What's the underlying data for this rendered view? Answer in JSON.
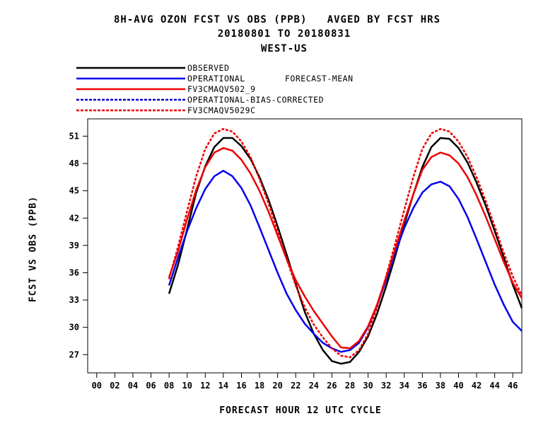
{
  "chart_data": {
    "type": "line",
    "title": [
      "8H-AVG OZON FCST VS OBS (PPB)   AVGED BY FCST HRS",
      "20180801 TO 20180831",
      "WEST-US"
    ],
    "xlabel": "FORECAST HOUR  12 UTC CYCLE",
    "ylabel": "FCST VS OBS (PPB)",
    "xlim": [
      -1,
      47
    ],
    "ylim": [
      25,
      52.9
    ],
    "xticks": [
      0,
      2,
      4,
      6,
      8,
      10,
      12,
      14,
      16,
      18,
      20,
      22,
      24,
      26,
      28,
      30,
      32,
      34,
      36,
      38,
      40,
      42,
      44,
      46
    ],
    "xtick_labels": [
      "00",
      "02",
      "04",
      "06",
      "08",
      "10",
      "12",
      "14",
      "16",
      "18",
      "20",
      "22",
      "24",
      "26",
      "28",
      "30",
      "32",
      "34",
      "36",
      "38",
      "40",
      "42",
      "44",
      "46"
    ],
    "yticks": [
      27,
      30,
      33,
      36,
      39,
      42,
      45,
      48,
      51
    ],
    "grid": false,
    "legend_position": "top-left",
    "legend_note": "FORECAST-MEAN",
    "series": [
      {
        "name": "OBSERVED",
        "color": "#000000",
        "dash": "solid",
        "x": [
          8,
          9,
          10,
          11,
          12,
          13,
          14,
          15,
          16,
          17,
          18,
          19,
          20,
          21,
          22,
          23,
          24,
          25,
          26,
          27,
          28,
          29,
          30,
          31,
          32,
          33,
          34,
          35,
          36,
          37,
          38,
          39,
          40,
          41,
          42,
          43,
          44,
          45,
          46,
          47
        ],
        "y": [
          33.7,
          36.9,
          40.8,
          44.8,
          47.7,
          49.8,
          50.8,
          50.8,
          49.9,
          48.5,
          46.5,
          44.0,
          41.1,
          38.0,
          34.8,
          31.7,
          29.3,
          27.5,
          26.3,
          26.0,
          26.2,
          27.3,
          29.0,
          31.5,
          34.5,
          37.8,
          41.3,
          44.6,
          47.6,
          49.8,
          50.8,
          50.7,
          49.7,
          48.1,
          45.9,
          43.4,
          40.6,
          37.7,
          34.7,
          32.1
        ]
      },
      {
        "name": "OPERATIONAL",
        "color": "#0000ee",
        "dash": "solid",
        "x": [
          8,
          9,
          10,
          11,
          12,
          13,
          14,
          15,
          16,
          17,
          18,
          19,
          20,
          21,
          22,
          23,
          24,
          25,
          26,
          27,
          28,
          29,
          30,
          31,
          32,
          33,
          34,
          35,
          36,
          37,
          38,
          39,
          40,
          41,
          42,
          43,
          44,
          45,
          46,
          47
        ],
        "y": [
          34.6,
          37.7,
          40.6,
          43.1,
          45.2,
          46.6,
          47.2,
          46.6,
          45.3,
          43.4,
          41.0,
          38.5,
          36.0,
          33.7,
          31.9,
          30.4,
          29.3,
          28.3,
          27.7,
          27.3,
          27.5,
          28.3,
          30.0,
          32.4,
          35.2,
          38.2,
          40.9,
          43.1,
          44.8,
          45.7,
          46.0,
          45.5,
          44.1,
          42.1,
          39.7,
          37.2,
          34.7,
          32.5,
          30.6,
          29.6
        ]
      },
      {
        "name": "FV3CMAQV502_9",
        "color": "#ee0000",
        "dash": "solid",
        "x": [
          8,
          9,
          10,
          11,
          12,
          13,
          14,
          15,
          16,
          17,
          18,
          19,
          20,
          21,
          22,
          23,
          24,
          25,
          26,
          27,
          28,
          29,
          30,
          31,
          32,
          33,
          34,
          35,
          36,
          37,
          38,
          39,
          40,
          41,
          42,
          43,
          44,
          45,
          46,
          47
        ],
        "y": [
          35.5,
          38.4,
          41.9,
          45.1,
          47.6,
          49.2,
          49.7,
          49.4,
          48.4,
          46.9,
          45.0,
          42.7,
          40.1,
          37.5,
          35.2,
          33.4,
          31.8,
          30.4,
          29.0,
          27.8,
          27.7,
          28.5,
          30.1,
          32.5,
          35.5,
          38.6,
          41.7,
          44.6,
          47.3,
          48.7,
          49.2,
          48.9,
          48.0,
          46.5,
          44.5,
          42.2,
          39.7,
          37.2,
          34.9,
          33.2
        ]
      },
      {
        "name": "OPERATIONAL-BIAS-CORRECTED",
        "color": "#0000cc",
        "dash": "4,2",
        "x": [],
        "y": []
      },
      {
        "name": "FV3CMAQV5029C",
        "color": "#ee0000",
        "dash": "4,2",
        "x": [
          8,
          9,
          10,
          11,
          12,
          13,
          14,
          15,
          16,
          17,
          18,
          19,
          20,
          21,
          22,
          23,
          24,
          25,
          26,
          27,
          28,
          29,
          30,
          31,
          32,
          33,
          34,
          35,
          36,
          37,
          38,
          39,
          40,
          41,
          42,
          43,
          44,
          45,
          46,
          47
        ],
        "y": [
          35.3,
          38.9,
          42.8,
          46.6,
          49.6,
          51.3,
          51.8,
          51.5,
          50.4,
          48.7,
          46.3,
          43.6,
          40.6,
          37.5,
          34.6,
          32.2,
          30.3,
          28.9,
          27.7,
          26.9,
          26.7,
          27.5,
          29.3,
          32.2,
          35.6,
          39.2,
          42.9,
          46.5,
          49.6,
          51.3,
          51.8,
          51.5,
          50.4,
          48.7,
          46.5,
          43.9,
          41.1,
          38.2,
          35.6,
          33.5
        ]
      }
    ]
  }
}
